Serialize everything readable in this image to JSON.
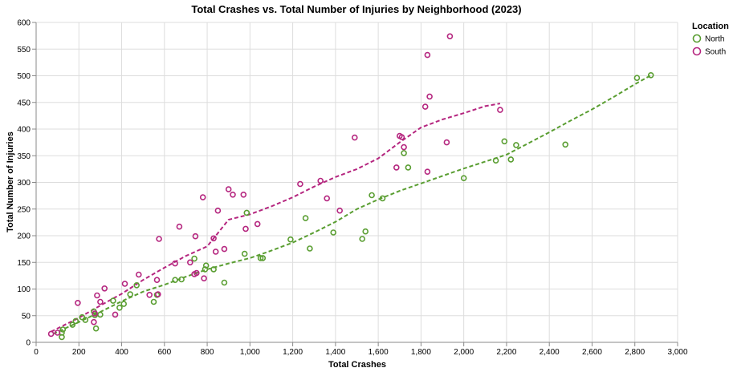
{
  "chart_data": {
    "type": "scatter",
    "title": "Total Crashes vs. Total Number of Injuries by Neighborhood (2023)",
    "xlabel": "Total Crashes",
    "ylabel": "Total Number of Injuries",
    "xlim": [
      0,
      3000
    ],
    "ylim": [
      0,
      600
    ],
    "x_ticks": [
      0,
      200,
      400,
      600,
      800,
      1000,
      1200,
      1400,
      1600,
      1800,
      2000,
      2200,
      2400,
      2600,
      2800,
      3000
    ],
    "x_tick_labels": [
      "0",
      "200",
      "400",
      "600",
      "800",
      "1,000",
      "1,200",
      "1,400",
      "1,600",
      "1,800",
      "2,000",
      "2,200",
      "2,400",
      "2,600",
      "2,800",
      "3,000"
    ],
    "y_ticks": [
      0,
      50,
      100,
      150,
      200,
      250,
      300,
      350,
      400,
      450,
      500,
      550,
      600
    ],
    "y_tick_labels": [
      "0",
      "50",
      "100",
      "150",
      "200",
      "250",
      "300",
      "350",
      "400",
      "450",
      "500",
      "550",
      "600"
    ],
    "grid": true,
    "legend": {
      "title": "Location",
      "placement": "top-right"
    },
    "series": [
      {
        "name": "North",
        "color": "#5a9e32",
        "points": [
          [
            120,
            10
          ],
          [
            120,
            18
          ],
          [
            125,
            24
          ],
          [
            170,
            33
          ],
          [
            185,
            40
          ],
          [
            215,
            47
          ],
          [
            230,
            42
          ],
          [
            270,
            58
          ],
          [
            275,
            51
          ],
          [
            280,
            26
          ],
          [
            300,
            52
          ],
          [
            360,
            78
          ],
          [
            390,
            65
          ],
          [
            410,
            72
          ],
          [
            440,
            90
          ],
          [
            470,
            107
          ],
          [
            550,
            76
          ],
          [
            565,
            89
          ],
          [
            650,
            117
          ],
          [
            680,
            118
          ],
          [
            740,
            157
          ],
          [
            790,
            137
          ],
          [
            795,
            144
          ],
          [
            830,
            137
          ],
          [
            880,
            112
          ],
          [
            975,
            166
          ],
          [
            985,
            243
          ],
          [
            1050,
            158
          ],
          [
            1060,
            158
          ],
          [
            1190,
            193
          ],
          [
            1260,
            233
          ],
          [
            1280,
            176
          ],
          [
            1390,
            206
          ],
          [
            1525,
            194
          ],
          [
            1540,
            208
          ],
          [
            1570,
            276
          ],
          [
            1620,
            270
          ],
          [
            1720,
            355
          ],
          [
            1740,
            328
          ],
          [
            2000,
            308
          ],
          [
            2150,
            341
          ],
          [
            2190,
            377
          ],
          [
            2220,
            343
          ],
          [
            2245,
            370
          ],
          [
            2475,
            371
          ],
          [
            2810,
            496
          ],
          [
            2875,
            501
          ]
        ],
        "trend": [
          [
            80,
            16
          ],
          [
            200,
            38
          ],
          [
            300,
            57
          ],
          [
            400,
            77
          ],
          [
            500,
            95
          ],
          [
            600,
            108
          ],
          [
            700,
            123
          ],
          [
            800,
            137
          ],
          [
            900,
            148
          ],
          [
            1000,
            158
          ],
          [
            1100,
            172
          ],
          [
            1200,
            187
          ],
          [
            1300,
            206
          ],
          [
            1400,
            226
          ],
          [
            1500,
            250
          ],
          [
            1600,
            268
          ],
          [
            1700,
            284
          ],
          [
            1800,
            298
          ],
          [
            1900,
            312
          ],
          [
            2000,
            326
          ],
          [
            2100,
            339
          ],
          [
            2200,
            352
          ],
          [
            2300,
            373
          ],
          [
            2400,
            394
          ],
          [
            2500,
            416
          ],
          [
            2600,
            437
          ],
          [
            2700,
            460
          ],
          [
            2800,
            484
          ],
          [
            2880,
            502
          ]
        ]
      },
      {
        "name": "South",
        "color": "#b5267f",
        "points": [
          [
            70,
            16
          ],
          [
            100,
            18
          ],
          [
            195,
            74
          ],
          [
            270,
            38
          ],
          [
            275,
            54
          ],
          [
            285,
            88
          ],
          [
            300,
            76
          ],
          [
            320,
            101
          ],
          [
            370,
            52
          ],
          [
            415,
            110
          ],
          [
            480,
            127
          ],
          [
            530,
            89
          ],
          [
            565,
            117
          ],
          [
            570,
            90
          ],
          [
            575,
            194
          ],
          [
            650,
            148
          ],
          [
            670,
            217
          ],
          [
            720,
            150
          ],
          [
            740,
            128
          ],
          [
            745,
            199
          ],
          [
            750,
            130
          ],
          [
            780,
            272
          ],
          [
            785,
            120
          ],
          [
            830,
            195
          ],
          [
            840,
            170
          ],
          [
            850,
            247
          ],
          [
            880,
            175
          ],
          [
            900,
            287
          ],
          [
            920,
            277
          ],
          [
            970,
            277
          ],
          [
            980,
            213
          ],
          [
            1035,
            222
          ],
          [
            1235,
            297
          ],
          [
            1330,
            303
          ],
          [
            1360,
            270
          ],
          [
            1420,
            247
          ],
          [
            1490,
            384
          ],
          [
            1685,
            328
          ],
          [
            1700,
            387
          ],
          [
            1710,
            385
          ],
          [
            1720,
            366
          ],
          [
            1820,
            442
          ],
          [
            1830,
            539
          ],
          [
            1830,
            320
          ],
          [
            1840,
            461
          ],
          [
            1920,
            375
          ],
          [
            1935,
            574
          ],
          [
            2170,
            436
          ]
        ],
        "trend": [
          [
            70,
            20
          ],
          [
            200,
            46
          ],
          [
            300,
            69
          ],
          [
            400,
            91
          ],
          [
            500,
            117
          ],
          [
            600,
            140
          ],
          [
            700,
            162
          ],
          [
            800,
            180
          ],
          [
            850,
            205
          ],
          [
            900,
            230
          ],
          [
            1000,
            240
          ],
          [
            1100,
            255
          ],
          [
            1200,
            272
          ],
          [
            1300,
            292
          ],
          [
            1400,
            310
          ],
          [
            1500,
            325
          ],
          [
            1600,
            345
          ],
          [
            1700,
            375
          ],
          [
            1800,
            403
          ],
          [
            1900,
            418
          ],
          [
            2000,
            430
          ],
          [
            2100,
            443
          ],
          [
            2170,
            448
          ]
        ]
      }
    ]
  }
}
